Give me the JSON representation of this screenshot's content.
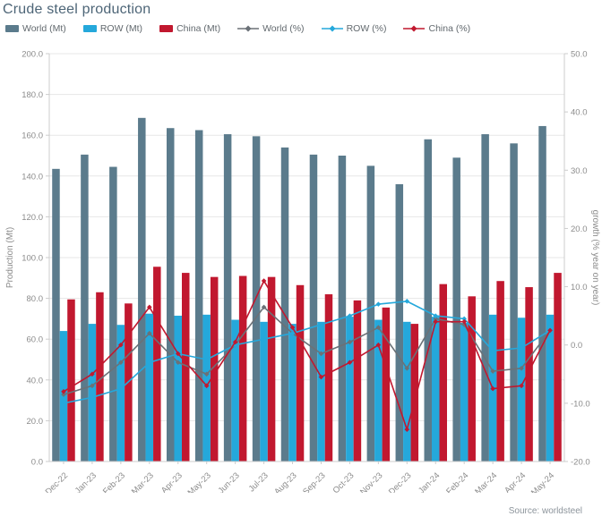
{
  "title": "Crude steel production",
  "source": "Source: worldsteel",
  "colors": {
    "world_bar": "#5b7b8c",
    "row_bar": "#25a8db",
    "china_bar": "#c1182f",
    "world_line": "#6b7177",
    "row_line": "#25a8db",
    "china_line": "#c1182f",
    "grid": "#e7e7e7",
    "axis_line": "#cccccc",
    "tick_text": "#8c8c8c",
    "title_text": "#4d6577"
  },
  "legend": {
    "items": [
      {
        "label": "World (Mt)",
        "glyph": "bar",
        "color": "#5b7b8c"
      },
      {
        "label": "ROW (Mt)",
        "glyph": "bar",
        "color": "#25a8db"
      },
      {
        "label": "China (Mt)",
        "glyph": "bar",
        "color": "#c1182f"
      },
      {
        "label": "World (%)",
        "glyph": "line",
        "color": "#6b7177"
      },
      {
        "label": "ROW (%)",
        "glyph": "line",
        "color": "#25a8db"
      },
      {
        "label": "China (%)",
        "glyph": "line",
        "color": "#c1182f"
      }
    ]
  },
  "chart_data": {
    "type": "bar",
    "subtype": "bar-line-combo",
    "grid": true,
    "legend_position": "top",
    "categories": [
      "Dec-22",
      "Jan-23",
      "Feb-23",
      "Mar-23",
      "Apr-23",
      "May-23",
      "Jun-23",
      "Jul-23",
      "Aug-23",
      "Sep-23",
      "Oct-23",
      "Nov-23",
      "Dec-23",
      "Jan-24",
      "Feb-24",
      "Mar-24",
      "Apr-24",
      "May-24"
    ],
    "left_axis": {
      "label": "Production (Mt)",
      "min": 0,
      "max": 200,
      "step": 20
    },
    "right_axis": {
      "label": "growth (% year on year)",
      "min": -20,
      "max": 50,
      "step": 10
    },
    "series": [
      {
        "name": "World (Mt)",
        "render": "bar",
        "axis": "left",
        "color": "#5b7b8c",
        "values": [
          143.5,
          150.5,
          144.5,
          168.5,
          163.5,
          162.5,
          160.5,
          159.5,
          154,
          150.5,
          150,
          145,
          136,
          158,
          149,
          160.5,
          156,
          164.5
        ]
      },
      {
        "name": "ROW (Mt)",
        "render": "bar",
        "axis": "left",
        "color": "#25a8db",
        "values": [
          64,
          67.5,
          67,
          72.5,
          71.5,
          72,
          69.5,
          68.5,
          67.5,
          68.5,
          71,
          69.5,
          68.5,
          71,
          68,
          72,
          70.5,
          72
        ]
      },
      {
        "name": "China (Mt)",
        "render": "bar",
        "axis": "left",
        "color": "#c1182f",
        "values": [
          79.5,
          83,
          77.5,
          95.5,
          92.5,
          90.5,
          91,
          90.5,
          86.5,
          82,
          79,
          75.5,
          67.5,
          87,
          81,
          88.5,
          85.5,
          92.5
        ]
      },
      {
        "name": "World (%)",
        "render": "line",
        "axis": "right",
        "color": "#6b7177",
        "values": [
          -8.5,
          -7,
          -3,
          2,
          -3,
          -5,
          0,
          6.5,
          2,
          -1.5,
          0.5,
          3,
          -4,
          4.5,
          3.5,
          -4.5,
          -4,
          2.5
        ]
      },
      {
        "name": "ROW (%)",
        "render": "line",
        "axis": "right",
        "color": "#25a8db",
        "values": [
          -10,
          -9,
          -7.5,
          -3,
          -1.5,
          -2.5,
          0,
          1,
          2,
          3.5,
          5,
          7,
          7.5,
          5,
          4.5,
          -1,
          -0.5,
          2.5
        ]
      },
      {
        "name": "China (%)",
        "render": "line",
        "axis": "right",
        "color": "#c1182f",
        "values": [
          -8,
          -5,
          0,
          6.5,
          -1.5,
          -7,
          0.5,
          11,
          3,
          -5.5,
          -3,
          0,
          -14.5,
          4,
          4,
          -7.5,
          -7,
          2.5
        ]
      }
    ]
  }
}
